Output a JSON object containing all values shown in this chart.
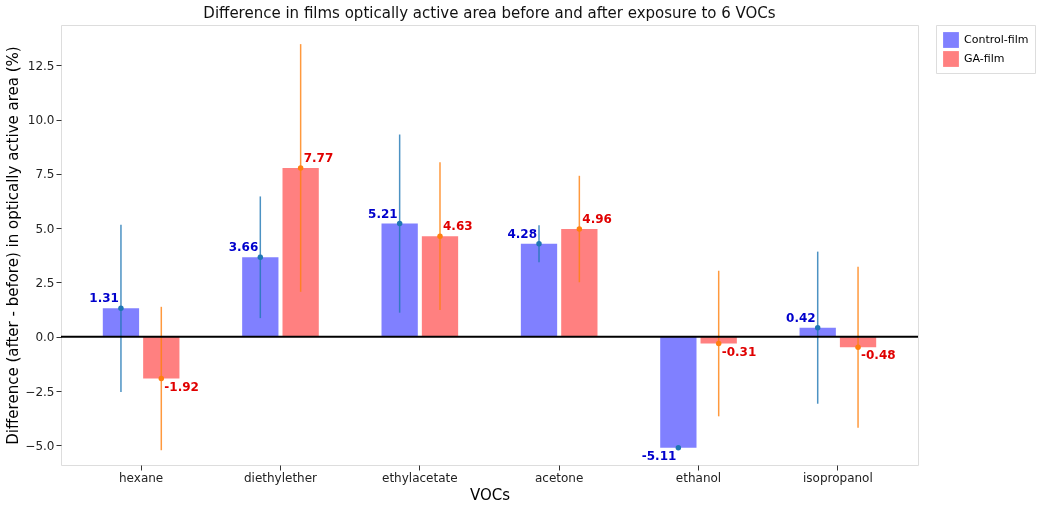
{
  "chart_data": {
    "type": "bar",
    "title": "Difference in films optically active area before and after exposure to 6 VOCs",
    "xlabel": "VOCs",
    "ylabel": "Difference (after - before) in optically active area (%)",
    "categories": [
      "hexane",
      "diethylether",
      "ethylacetate",
      "acetone",
      "ethanol",
      "isopropanol"
    ],
    "series": [
      {
        "name": "Control-film",
        "color": "#8080ff",
        "values": [
          1.31,
          3.66,
          5.21,
          4.28,
          -5.11,
          0.42
        ],
        "errors": [
          3.85,
          2.8,
          4.1,
          0.85,
          null,
          3.5
        ]
      },
      {
        "name": "GA-film",
        "color": "#ff8080",
        "values": [
          -1.92,
          7.77,
          4.63,
          4.96,
          -0.31,
          -0.48
        ],
        "errors": [
          3.3,
          5.7,
          3.4,
          2.45,
          3.35,
          3.7
        ]
      }
    ],
    "ylim": [
      -5.9,
      14.35
    ],
    "yticks": [
      {
        "value": -5,
        "label": "−5.0"
      },
      {
        "value": -2.5,
        "label": "−2.5"
      },
      {
        "value": 0,
        "label": "0.0"
      },
      {
        "value": 2.5,
        "label": "2.5"
      },
      {
        "value": 5,
        "label": "5.0"
      },
      {
        "value": 7.5,
        "label": "7.5"
      },
      {
        "value": 10,
        "label": "10.0"
      },
      {
        "value": 12.5,
        "label": "12.5"
      }
    ],
    "ref_lines": [
      {
        "axis": "y",
        "value": 0,
        "color": "#000000"
      }
    ],
    "data_labels": true,
    "grid": false,
    "legend": "top right"
  }
}
